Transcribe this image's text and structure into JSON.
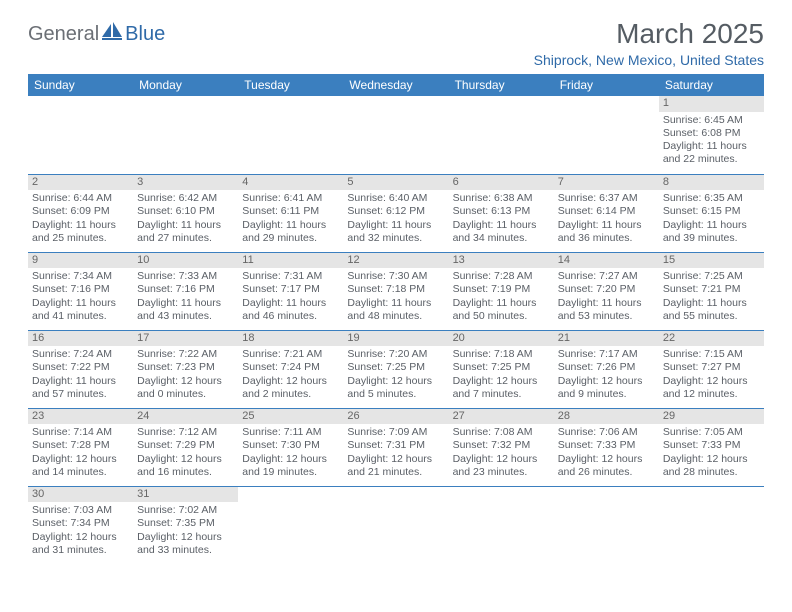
{
  "brand": {
    "part1": "General",
    "part2": "Blue"
  },
  "title": "March 2025",
  "location": "Shiprock, New Mexico, United States",
  "colors": {
    "header_bg": "#3b7fbf",
    "header_text": "#ffffff",
    "border": "#3b7fbf",
    "daynum_bg": "#e5e5e5",
    "text": "#5a5f66",
    "brand_gray": "#6b6f75",
    "brand_blue": "#2f6aa8"
  },
  "day_names": [
    "Sunday",
    "Monday",
    "Tuesday",
    "Wednesday",
    "Thursday",
    "Friday",
    "Saturday"
  ],
  "weeks": [
    [
      {
        "n": "",
        "sr": "",
        "ss": "",
        "dl": ""
      },
      {
        "n": "",
        "sr": "",
        "ss": "",
        "dl": ""
      },
      {
        "n": "",
        "sr": "",
        "ss": "",
        "dl": ""
      },
      {
        "n": "",
        "sr": "",
        "ss": "",
        "dl": ""
      },
      {
        "n": "",
        "sr": "",
        "ss": "",
        "dl": ""
      },
      {
        "n": "",
        "sr": "",
        "ss": "",
        "dl": ""
      },
      {
        "n": "1",
        "sr": "Sunrise: 6:45 AM",
        "ss": "Sunset: 6:08 PM",
        "dl": "Daylight: 11 hours and 22 minutes."
      }
    ],
    [
      {
        "n": "2",
        "sr": "Sunrise: 6:44 AM",
        "ss": "Sunset: 6:09 PM",
        "dl": "Daylight: 11 hours and 25 minutes."
      },
      {
        "n": "3",
        "sr": "Sunrise: 6:42 AM",
        "ss": "Sunset: 6:10 PM",
        "dl": "Daylight: 11 hours and 27 minutes."
      },
      {
        "n": "4",
        "sr": "Sunrise: 6:41 AM",
        "ss": "Sunset: 6:11 PM",
        "dl": "Daylight: 11 hours and 29 minutes."
      },
      {
        "n": "5",
        "sr": "Sunrise: 6:40 AM",
        "ss": "Sunset: 6:12 PM",
        "dl": "Daylight: 11 hours and 32 minutes."
      },
      {
        "n": "6",
        "sr": "Sunrise: 6:38 AM",
        "ss": "Sunset: 6:13 PM",
        "dl": "Daylight: 11 hours and 34 minutes."
      },
      {
        "n": "7",
        "sr": "Sunrise: 6:37 AM",
        "ss": "Sunset: 6:14 PM",
        "dl": "Daylight: 11 hours and 36 minutes."
      },
      {
        "n": "8",
        "sr": "Sunrise: 6:35 AM",
        "ss": "Sunset: 6:15 PM",
        "dl": "Daylight: 11 hours and 39 minutes."
      }
    ],
    [
      {
        "n": "9",
        "sr": "Sunrise: 7:34 AM",
        "ss": "Sunset: 7:16 PM",
        "dl": "Daylight: 11 hours and 41 minutes."
      },
      {
        "n": "10",
        "sr": "Sunrise: 7:33 AM",
        "ss": "Sunset: 7:16 PM",
        "dl": "Daylight: 11 hours and 43 minutes."
      },
      {
        "n": "11",
        "sr": "Sunrise: 7:31 AM",
        "ss": "Sunset: 7:17 PM",
        "dl": "Daylight: 11 hours and 46 minutes."
      },
      {
        "n": "12",
        "sr": "Sunrise: 7:30 AM",
        "ss": "Sunset: 7:18 PM",
        "dl": "Daylight: 11 hours and 48 minutes."
      },
      {
        "n": "13",
        "sr": "Sunrise: 7:28 AM",
        "ss": "Sunset: 7:19 PM",
        "dl": "Daylight: 11 hours and 50 minutes."
      },
      {
        "n": "14",
        "sr": "Sunrise: 7:27 AM",
        "ss": "Sunset: 7:20 PM",
        "dl": "Daylight: 11 hours and 53 minutes."
      },
      {
        "n": "15",
        "sr": "Sunrise: 7:25 AM",
        "ss": "Sunset: 7:21 PM",
        "dl": "Daylight: 11 hours and 55 minutes."
      }
    ],
    [
      {
        "n": "16",
        "sr": "Sunrise: 7:24 AM",
        "ss": "Sunset: 7:22 PM",
        "dl": "Daylight: 11 hours and 57 minutes."
      },
      {
        "n": "17",
        "sr": "Sunrise: 7:22 AM",
        "ss": "Sunset: 7:23 PM",
        "dl": "Daylight: 12 hours and 0 minutes."
      },
      {
        "n": "18",
        "sr": "Sunrise: 7:21 AM",
        "ss": "Sunset: 7:24 PM",
        "dl": "Daylight: 12 hours and 2 minutes."
      },
      {
        "n": "19",
        "sr": "Sunrise: 7:20 AM",
        "ss": "Sunset: 7:25 PM",
        "dl": "Daylight: 12 hours and 5 minutes."
      },
      {
        "n": "20",
        "sr": "Sunrise: 7:18 AM",
        "ss": "Sunset: 7:25 PM",
        "dl": "Daylight: 12 hours and 7 minutes."
      },
      {
        "n": "21",
        "sr": "Sunrise: 7:17 AM",
        "ss": "Sunset: 7:26 PM",
        "dl": "Daylight: 12 hours and 9 minutes."
      },
      {
        "n": "22",
        "sr": "Sunrise: 7:15 AM",
        "ss": "Sunset: 7:27 PM",
        "dl": "Daylight: 12 hours and 12 minutes."
      }
    ],
    [
      {
        "n": "23",
        "sr": "Sunrise: 7:14 AM",
        "ss": "Sunset: 7:28 PM",
        "dl": "Daylight: 12 hours and 14 minutes."
      },
      {
        "n": "24",
        "sr": "Sunrise: 7:12 AM",
        "ss": "Sunset: 7:29 PM",
        "dl": "Daylight: 12 hours and 16 minutes."
      },
      {
        "n": "25",
        "sr": "Sunrise: 7:11 AM",
        "ss": "Sunset: 7:30 PM",
        "dl": "Daylight: 12 hours and 19 minutes."
      },
      {
        "n": "26",
        "sr": "Sunrise: 7:09 AM",
        "ss": "Sunset: 7:31 PM",
        "dl": "Daylight: 12 hours and 21 minutes."
      },
      {
        "n": "27",
        "sr": "Sunrise: 7:08 AM",
        "ss": "Sunset: 7:32 PM",
        "dl": "Daylight: 12 hours and 23 minutes."
      },
      {
        "n": "28",
        "sr": "Sunrise: 7:06 AM",
        "ss": "Sunset: 7:33 PM",
        "dl": "Daylight: 12 hours and 26 minutes."
      },
      {
        "n": "29",
        "sr": "Sunrise: 7:05 AM",
        "ss": "Sunset: 7:33 PM",
        "dl": "Daylight: 12 hours and 28 minutes."
      }
    ],
    [
      {
        "n": "30",
        "sr": "Sunrise: 7:03 AM",
        "ss": "Sunset: 7:34 PM",
        "dl": "Daylight: 12 hours and 31 minutes."
      },
      {
        "n": "31",
        "sr": "Sunrise: 7:02 AM",
        "ss": "Sunset: 7:35 PM",
        "dl": "Daylight: 12 hours and 33 minutes."
      },
      {
        "n": "",
        "sr": "",
        "ss": "",
        "dl": ""
      },
      {
        "n": "",
        "sr": "",
        "ss": "",
        "dl": ""
      },
      {
        "n": "",
        "sr": "",
        "ss": "",
        "dl": ""
      },
      {
        "n": "",
        "sr": "",
        "ss": "",
        "dl": ""
      },
      {
        "n": "",
        "sr": "",
        "ss": "",
        "dl": ""
      }
    ]
  ]
}
